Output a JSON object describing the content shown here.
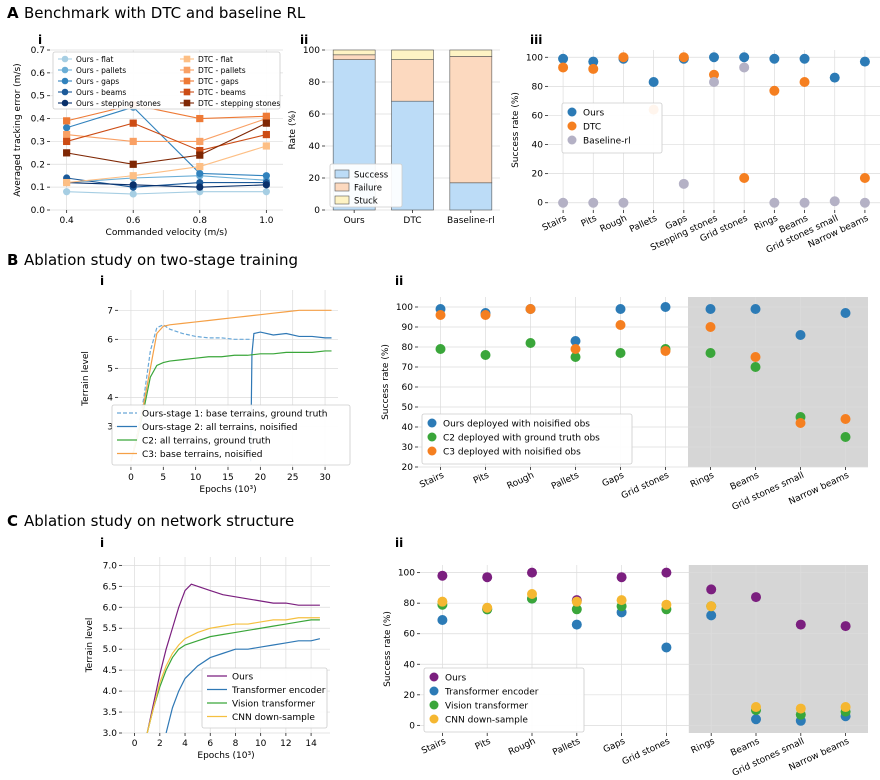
{
  "sections": [
    {
      "letter": "A",
      "title": "Benchmark with DTC and baseline RL"
    },
    {
      "letter": "B",
      "title": "Ablation study on two-stage training"
    },
    {
      "letter": "C",
      "title": "Ablation study on network structure"
    }
  ],
  "chart_data": [
    {
      "id": "Ai",
      "panel": "i",
      "type": "line",
      "markers": true,
      "xlabel": "Commanded velocity (m/s)",
      "ylabel": "Averaged tracking error (m/s)",
      "xlim": [
        0.35,
        1.05
      ],
      "ylim": [
        0,
        0.7
      ],
      "xticks": [
        0.4,
        0.6,
        0.8,
        1.0
      ],
      "xtick_labels": [
        "0.4",
        "0.6",
        "0.8",
        "1.0"
      ],
      "yticks": [
        0,
        0.1,
        0.2,
        0.3,
        0.4,
        0.5,
        0.6,
        0.7
      ],
      "ytick_labels": [
        "0.0",
        "0.1",
        "0.2",
        "0.3",
        "0.4",
        "0.5",
        "0.6",
        "0.7"
      ],
      "grid": true,
      "legend": "top",
      "legend_cols": 2,
      "x": [
        0.4,
        0.6,
        0.8,
        1.0
      ],
      "series": [
        {
          "name": "Ours - flat",
          "marker": "circle",
          "color": "#a6cee3",
          "values": [
            0.08,
            0.07,
            0.08,
            0.08
          ]
        },
        {
          "name": "Ours - pallets",
          "marker": "circle",
          "color": "#6baed6",
          "values": [
            0.12,
            0.14,
            0.15,
            0.13
          ]
        },
        {
          "name": "Ours - gaps",
          "marker": "circle",
          "color": "#3182bd",
          "values": [
            0.36,
            0.45,
            0.16,
            0.15
          ]
        },
        {
          "name": "Ours - beams",
          "marker": "circle",
          "color": "#1c5a99",
          "values": [
            0.14,
            0.1,
            0.12,
            0.12
          ]
        },
        {
          "name": "Ours - stepping stones",
          "marker": "circle",
          "color": "#08306b",
          "values": [
            0.12,
            0.11,
            0.1,
            0.11
          ]
        },
        {
          "name": "DTC - flat",
          "marker": "square",
          "color": "#fdbf85",
          "values": [
            0.12,
            0.15,
            0.19,
            0.28
          ]
        },
        {
          "name": "DTC - pallets",
          "marker": "square",
          "color": "#f9a064",
          "values": [
            0.33,
            0.3,
            0.3,
            0.4
          ]
        },
        {
          "name": "DTC - gaps",
          "marker": "square",
          "color": "#ee7a36",
          "values": [
            0.39,
            0.46,
            0.4,
            0.41
          ]
        },
        {
          "name": "DTC - beams",
          "marker": "square",
          "color": "#cc4c15",
          "values": [
            0.3,
            0.38,
            0.26,
            0.33
          ]
        },
        {
          "name": "DTC - stepping stones",
          "marker": "square",
          "color": "#7f2704",
          "values": [
            0.25,
            0.2,
            0.24,
            0.38
          ]
        }
      ]
    },
    {
      "id": "Aii",
      "panel": "ii",
      "type": "bar",
      "stacked": true,
      "ylabel": "Rate (%)",
      "ylim": [
        0,
        100
      ],
      "yticks": [
        0,
        20,
        40,
        60,
        80,
        100
      ],
      "ytick_labels": [
        "0",
        "20",
        "40",
        "60",
        "80",
        "100"
      ],
      "grid": true,
      "legend": "bottom-left",
      "categories": [
        "Ours",
        "DTC",
        "Baseline-rl"
      ],
      "series": [
        {
          "name": "Success",
          "color": "#bcdcf7",
          "values": [
            94,
            68,
            17
          ]
        },
        {
          "name": "Failure",
          "color": "#fcd9bf",
          "values": [
            3,
            26,
            79
          ]
        },
        {
          "name": "Stuck",
          "color": "#fef3c4",
          "values": [
            3,
            6,
            4
          ]
        }
      ]
    },
    {
      "id": "Aiii",
      "panel": "iii",
      "type": "scatter",
      "ylabel": "Success rate (%)",
      "ylim": [
        -5,
        105
      ],
      "yticks": [
        0,
        20,
        40,
        60,
        80,
        100
      ],
      "ytick_labels": [
        "0",
        "20",
        "40",
        "60",
        "80",
        "100"
      ],
      "grid": true,
      "legend": "middle-left",
      "categories": [
        "Stairs",
        "Pits",
        "Rough",
        "Pallets",
        "Gaps",
        "Stepping stones",
        "Grid stones",
        "Rings",
        "Beams",
        "Grid stones small",
        "Narrow beams"
      ],
      "series": [
        {
          "name": "Ours",
          "color": "#2c7bb6",
          "values": [
            99,
            97,
            99,
            83,
            99,
            100,
            100,
            99,
            99,
            86,
            97
          ]
        },
        {
          "name": "DTC",
          "color": "#f57f20",
          "values": [
            93,
            92,
            100,
            64,
            100,
            88,
            17,
            77,
            83,
            null,
            17
          ]
        },
        {
          "name": "Baseline-rl",
          "color": "#b4b1c5",
          "values": [
            0,
            0,
            0,
            null,
            13,
            83,
            93,
            0,
            0,
            1,
            0
          ]
        }
      ]
    },
    {
      "id": "Bi",
      "panel": "i",
      "type": "line",
      "xlabel": "Epochs (10³)",
      "ylabel": "Terrain level",
      "xlim": [
        -2,
        32
      ],
      "ylim": [
        1.6,
        7.7
      ],
      "xticks": [
        0,
        5,
        10,
        15,
        20,
        25,
        30
      ],
      "xtick_labels": [
        "0",
        "5",
        "10",
        "15",
        "20",
        "25",
        "30"
      ],
      "yticks": [
        3,
        4,
        5,
        6,
        7
      ],
      "ytick_labels": [
        "3",
        "4",
        "5",
        "6",
        "7"
      ],
      "grid": true,
      "legend": "bottom-left",
      "series": [
        {
          "name": "Ours-stage 1: base terrains, ground truth",
          "color": "#6aa8d8",
          "dashed": true,
          "x": [
            0,
            1,
            2,
            3,
            4,
            5,
            6,
            8,
            10,
            12,
            14,
            16,
            18.5
          ],
          "values": [
            1.8,
            2.8,
            4.0,
            5.6,
            6.4,
            6.5,
            6.35,
            6.2,
            6.1,
            6.05,
            6.05,
            6.0,
            6.0
          ]
        },
        {
          "name": "Ours-stage 2: all terrains, noisified",
          "color": "#2f78b5",
          "x": [
            18.5,
            18.7,
            19,
            20,
            22,
            24,
            26,
            28,
            30,
            31
          ],
          "values": [
            1.8,
            5.5,
            6.2,
            6.25,
            6.15,
            6.2,
            6.1,
            6.1,
            6.05,
            6.05
          ]
        },
        {
          "name": "C2: all terrains, ground truth",
          "color": "#3aa63a",
          "x": [
            0,
            1,
            2,
            3,
            4,
            5,
            6,
            8,
            10,
            12,
            14,
            16,
            18,
            20,
            22,
            24,
            26,
            28,
            30,
            31
          ],
          "values": [
            1.8,
            2.6,
            3.6,
            4.7,
            5.1,
            5.2,
            5.25,
            5.3,
            5.35,
            5.4,
            5.4,
            5.45,
            5.45,
            5.5,
            5.5,
            5.55,
            5.55,
            5.55,
            5.6,
            5.6
          ]
        },
        {
          "name": "C3: base terrains, noisified",
          "color": "#f5a046",
          "x": [
            0,
            1,
            2,
            3,
            4,
            5,
            6,
            8,
            10,
            12,
            14,
            16,
            18,
            20,
            22,
            24,
            26,
            28,
            30,
            31
          ],
          "values": [
            1.8,
            2.7,
            3.8,
            5.0,
            6.2,
            6.45,
            6.5,
            6.55,
            6.6,
            6.65,
            6.7,
            6.75,
            6.8,
            6.85,
            6.9,
            6.95,
            7.0,
            7.0,
            7.0,
            7.0
          ]
        }
      ]
    },
    {
      "id": "Bii",
      "panel": "ii",
      "type": "scatter",
      "ylabel": "Success rate (%)",
      "ylim": [
        20,
        105
      ],
      "yticks": [
        20,
        30,
        40,
        50,
        60,
        70,
        80,
        90,
        100
      ],
      "ytick_labels": [
        "20",
        "30",
        "40",
        "50",
        "60",
        "70",
        "80",
        "90",
        "100"
      ],
      "grid": true,
      "legend": "bottom-left",
      "shaded_from": "Rings",
      "categories": [
        "Stairs",
        "Pits",
        "Rough",
        "Pallets",
        "Gaps",
        "Grid stones",
        "Rings",
        "Beams",
        "Grid stones small",
        "Narrow beams"
      ],
      "series": [
        {
          "name": "Ours deployed with noisified obs",
          "color": "#2c7bb6",
          "values": [
            99,
            97,
            99,
            83,
            99,
            100,
            99,
            99,
            86,
            97
          ]
        },
        {
          "name": "C2 deployed with ground truth obs",
          "color": "#3aa63a",
          "values": [
            79,
            76,
            82,
            75,
            77,
            79,
            77,
            70,
            45,
            35
          ]
        },
        {
          "name": "C3 deployed with noisified obs",
          "color": "#f57f20",
          "values": [
            96,
            96,
            99,
            79,
            91,
            78,
            90,
            75,
            42,
            44
          ]
        }
      ]
    },
    {
      "id": "Ci",
      "panel": "i",
      "type": "line",
      "xlabel": "Epochs (10³)",
      "ylabel": "Terrain level",
      "xlim": [
        -1,
        15.5
      ],
      "ylim": [
        3.0,
        7.2
      ],
      "xticks": [
        0,
        2,
        4,
        6,
        8,
        10,
        12,
        14
      ],
      "xtick_labels": [
        "0",
        "2",
        "4",
        "6",
        "8",
        "10",
        "12",
        "14"
      ],
      "yticks": [
        3.0,
        3.5,
        4.0,
        4.5,
        5.0,
        5.5,
        6.0,
        6.5,
        7.0
      ],
      "ytick_labels": [
        "3.0",
        "3.5",
        "4.0",
        "4.5",
        "5.0",
        "5.5",
        "6.0",
        "6.5",
        "7.0"
      ],
      "grid": true,
      "legend": "bottom-right",
      "series": [
        {
          "name": "Ours",
          "color": "#7b1f7f",
          "x": [
            1,
            1.5,
            2,
            2.5,
            3,
            3.5,
            4,
            4.5,
            5,
            6,
            7,
            8,
            9,
            10,
            11,
            12,
            13,
            14,
            14.7
          ],
          "values": [
            3.0,
            3.7,
            4.4,
            5.0,
            5.5,
            6.0,
            6.4,
            6.55,
            6.5,
            6.4,
            6.3,
            6.25,
            6.2,
            6.15,
            6.1,
            6.1,
            6.05,
            6.05,
            6.05
          ]
        },
        {
          "name": "Transformer encoder",
          "color": "#2f78b5",
          "x": [
            2.5,
            3,
            3.5,
            4,
            5,
            6,
            7,
            8,
            9,
            10,
            11,
            12,
            13,
            14,
            14.7
          ],
          "values": [
            3.0,
            3.6,
            4.0,
            4.3,
            4.6,
            4.8,
            4.9,
            5.0,
            5.0,
            5.05,
            5.1,
            5.15,
            5.2,
            5.2,
            5.25
          ]
        },
        {
          "name": "Vision transformer",
          "color": "#3aa63a",
          "x": [
            1,
            1.5,
            2,
            2.5,
            3,
            3.5,
            4,
            5,
            6,
            7,
            8,
            9,
            10,
            11,
            12,
            13,
            14,
            14.7
          ],
          "values": [
            3.0,
            3.6,
            4.1,
            4.5,
            4.8,
            5.0,
            5.1,
            5.2,
            5.3,
            5.35,
            5.4,
            5.45,
            5.5,
            5.55,
            5.6,
            5.65,
            5.7,
            5.7
          ]
        },
        {
          "name": "CNN down-sample",
          "color": "#f5c040",
          "x": [
            1,
            1.5,
            2,
            2.5,
            3,
            3.5,
            4,
            5,
            6,
            7,
            8,
            9,
            10,
            11,
            12,
            13,
            14,
            14.7
          ],
          "values": [
            3.0,
            3.6,
            4.2,
            4.6,
            4.9,
            5.1,
            5.25,
            5.4,
            5.5,
            5.55,
            5.6,
            5.6,
            5.65,
            5.7,
            5.7,
            5.75,
            5.75,
            5.75
          ]
        }
      ]
    },
    {
      "id": "Cii",
      "panel": "ii",
      "type": "scatter",
      "ylabel": "Success rate (%)",
      "ylim": [
        -5,
        105
      ],
      "yticks": [
        0,
        20,
        40,
        60,
        80,
        100
      ],
      "ytick_labels": [
        "0",
        "20",
        "40",
        "60",
        "80",
        "100"
      ],
      "grid": true,
      "legend": "bottom-left",
      "shaded_from": "Rings",
      "categories": [
        "Stairs",
        "Pits",
        "Rough",
        "Pallets",
        "Gaps",
        "Grid stones",
        "Rings",
        "Beams",
        "Grid stones small",
        "Narrow beams"
      ],
      "series": [
        {
          "name": "Ours",
          "color": "#7b1f7f",
          "values": [
            98,
            97,
            100,
            82,
            97,
            100,
            89,
            84,
            66,
            65
          ]
        },
        {
          "name": "Transformer encoder",
          "color": "#2c7bb6",
          "values": [
            69,
            76,
            83,
            66,
            74,
            51,
            72,
            4,
            3,
            6
          ]
        },
        {
          "name": "Vision transformer",
          "color": "#3aa63a",
          "values": [
            79,
            76,
            83,
            76,
            78,
            76,
            78,
            10,
            7,
            9
          ]
        },
        {
          "name": "CNN down-sample",
          "color": "#f5b731",
          "values": [
            81,
            77,
            86,
            81,
            82,
            79,
            78,
            12,
            11,
            12
          ]
        }
      ]
    }
  ]
}
